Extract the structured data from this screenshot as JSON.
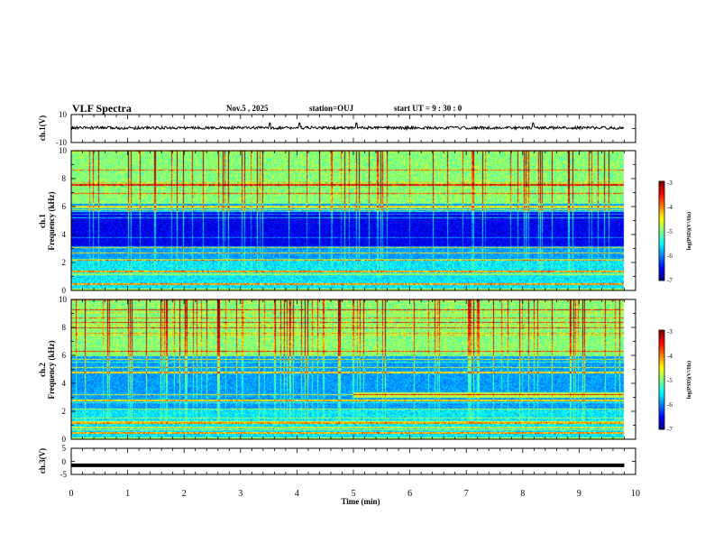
{
  "header": {
    "title": "VLF Spectra",
    "date": "Nov.5  , 2025",
    "station": "station=OUJ",
    "start_ut": "start  UT  =   9  : 30 : 0"
  },
  "chart_data": [
    {
      "type": "line",
      "panel": "ch1-waveform",
      "ylabel": "ch.1(V)",
      "ylim": [
        -10,
        10
      ],
      "yticks": [
        "10",
        "-10"
      ],
      "xlim": [
        0,
        9.8
      ],
      "baseline": 0.5,
      "noise_amplitude": 0.5,
      "spikes_at_min": [
        3.52,
        4.05,
        5.05,
        8.18
      ]
    },
    {
      "type": "heatmap",
      "panel": "ch1-spectrogram",
      "ylabel": "ch.1\nFrequency (kHz)",
      "ylabel_line1": "ch.1",
      "ylabel_line2": "Frequency  (kHz)",
      "ylim": [
        0,
        10
      ],
      "yticks": [
        "0",
        "2",
        "4",
        "6",
        "8",
        "10"
      ],
      "xlim": [
        0,
        9.8
      ],
      "colorbar": {
        "label": "log(PSD)(V²/Hz)",
        "range": [
          -7,
          -3
        ],
        "ticks": [
          "-3",
          "-4",
          "-5",
          "-6",
          "-7"
        ]
      },
      "features": {
        "high_band_khz": [
          6.2,
          10
        ],
        "dark_band_khz": [
          3.2,
          5.8
        ],
        "strong_lines_khz": [
          0.5,
          1.4,
          2.2,
          2.7,
          3.1,
          6.05,
          7.6
        ],
        "noise_burst_rate": 0.55
      }
    },
    {
      "type": "heatmap",
      "panel": "ch2-spectrogram",
      "ylabel_line1": "ch.2",
      "ylabel_line2": "Frequency  (kHz)",
      "ylim": [
        0,
        10
      ],
      "yticks": [
        "0",
        "2",
        "4",
        "6",
        "8",
        "10"
      ],
      "xlim": [
        0,
        9.8
      ],
      "colorbar": {
        "label": "log(PSD)(V²/Hz)",
        "range": [
          -7,
          -3
        ],
        "ticks": [
          "-3",
          "-4",
          "-5",
          "-6",
          "-7"
        ]
      },
      "features": {
        "high_band_khz": [
          6.0,
          10
        ],
        "green_band_khz": [
          3.0,
          3.4
        ],
        "green_band_start_min": 5.0,
        "strong_lines_khz": [
          0.5,
          1.2,
          2.8,
          4.8,
          9.3
        ],
        "noise_burst_rate": 0.75
      }
    },
    {
      "type": "line",
      "panel": "ch3-waveform",
      "ylabel": "ch.3(V)",
      "ylim": [
        -5,
        5
      ],
      "yticks": [
        "5",
        "0",
        "-5"
      ],
      "xlim": [
        0,
        9.8
      ],
      "value": -1.5
    }
  ],
  "xaxis": {
    "label": "Time  (min)",
    "range": [
      0,
      10
    ],
    "ticks": [
      "0",
      "1",
      "2",
      "3",
      "4",
      "5",
      "6",
      "7",
      "8",
      "9",
      "10"
    ]
  },
  "colors": {
    "background": "#ffffff",
    "trace": "#000000"
  }
}
